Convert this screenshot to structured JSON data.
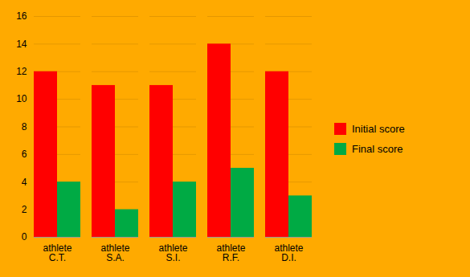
{
  "chart_data": {
    "type": "bar",
    "categories": [
      "athlete\nC.T.",
      "athlete\nS.A.",
      "athlete\nS.I.",
      "athlete\nR.F.",
      "athlete\nD.I."
    ],
    "series": [
      {
        "name": "Initial score",
        "color": "#ff0000",
        "values": [
          12,
          11,
          11,
          14,
          12
        ]
      },
      {
        "name": "Final score",
        "color": "#00aa44",
        "values": [
          4,
          2,
          4,
          5,
          3
        ]
      }
    ],
    "ylim": [
      0,
      16
    ],
    "yticks": [
      0,
      2,
      4,
      6,
      8,
      10,
      12,
      14,
      16
    ],
    "grid": true,
    "legend": "right"
  }
}
